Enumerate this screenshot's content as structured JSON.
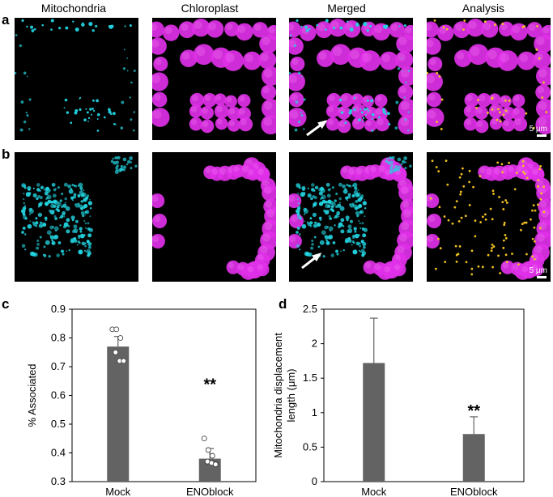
{
  "column_titles": [
    "Mitochondria",
    "Chloroplast",
    "Merged",
    "Analysis"
  ],
  "panel_letters": {
    "a": "a",
    "b": "b",
    "c": "c",
    "d": "d"
  },
  "scale_label": "5 μm",
  "colors": {
    "mitochondria": "#22d3e0",
    "chloroplast": "#e030e8",
    "analysis_dot": "#f0c020",
    "bar": "#636363",
    "arrow": "#ffffff"
  },
  "chart_data": [
    {
      "type": "bar",
      "panel": "c",
      "categories": [
        "Mock",
        "ENOblock"
      ],
      "values": [
        0.77,
        0.38
      ],
      "error": [
        0.035,
        0.035
      ],
      "points": [
        [
          0.83,
          0.83,
          0.8,
          0.75,
          0.72,
          0.72
        ],
        [
          0.45,
          0.41,
          0.39,
          0.37,
          0.365,
          0.36
        ]
      ],
      "ylabel": "% Associated",
      "ylim": [
        0.3,
        0.9
      ],
      "yticks": [
        0.3,
        0.4,
        0.5,
        0.6,
        0.7,
        0.8,
        0.9
      ],
      "ytick_labels": [
        "0.3",
        "0.4",
        "0.5",
        "0.6",
        "0.7",
        "0.8",
        "0.9"
      ],
      "annotation": "**"
    },
    {
      "type": "bar",
      "panel": "d",
      "categories": [
        "Mock",
        "ENOblock"
      ],
      "values": [
        1.72,
        0.69
      ],
      "error": [
        0.65,
        0.25
      ],
      "ylabel": "Mitochondria displacement length (μm)",
      "ylabel_lines": [
        "Mitochondria displacement",
        "length (μm)"
      ],
      "ylim": [
        0,
        2.5
      ],
      "yticks": [
        0,
        0.5,
        1,
        1.5,
        2,
        2.5
      ],
      "ytick_labels": [
        "0",
        "0.5",
        "1",
        "1.5",
        "2",
        "2.5"
      ],
      "annotation": "**"
    }
  ]
}
